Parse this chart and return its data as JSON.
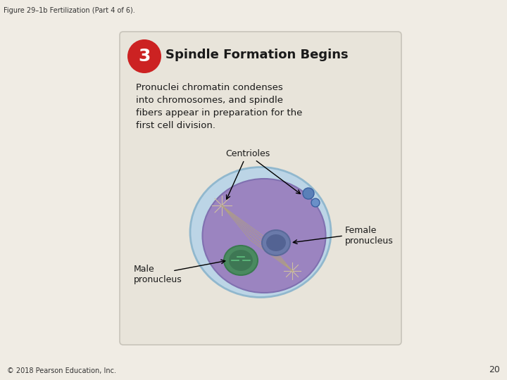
{
  "fig_title": "Figure 29–1b Fertilization (Part 4 of 6).",
  "step_number": "3",
  "step_title": "Spindle Formation Begins",
  "description": "Pronuclei chromatin condenses\ninto chromosomes, and spindle\nfibers appear in preparation for the\nfirst cell division.",
  "label_centrioles": "Centrioles",
  "label_male": "Male\npronucleus",
  "label_female": "Female\npronucleus",
  "footer": "© 2018 Pearson Education, Inc.",
  "page_number": "20",
  "bg_color": "#f0ece4",
  "card_bg": "#e8e4da",
  "card_border": "#c8c4ba",
  "red_circle_color": "#cc2222",
  "step_num_color": "#ffffff",
  "title_color": "#1a1a1a",
  "text_color": "#1a1a1a",
  "cell_outer_color": "#b8d4e8",
  "cell_inner_color": "#9b84c0",
  "cell_inner_dark": "#8070b0",
  "male_nucleus_color": "#4a8a60",
  "female_nucleus_color": "#6a7aaa",
  "male_nucleus_inner": "#3a7a50",
  "female_nucleus_inner": "#5a6a9a"
}
